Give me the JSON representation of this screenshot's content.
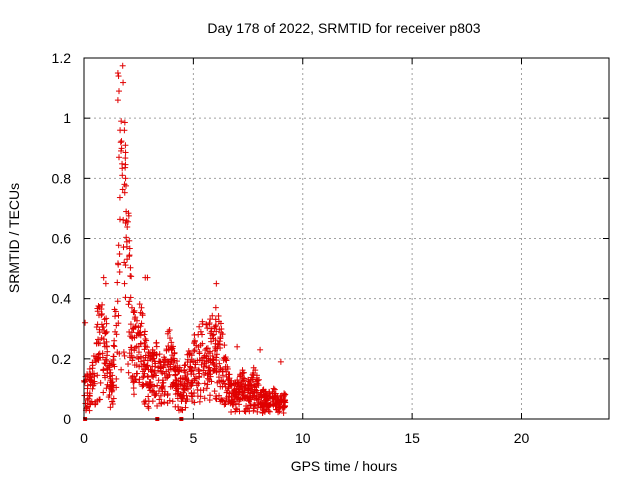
{
  "chart_data": {
    "type": "scatter",
    "title": "Day 178 of 2022, SRMTID for receiver p803",
    "xlabel": "GPS time / hours",
    "ylabel": "SRMTID / TECUs",
    "xlim": [
      0,
      24
    ],
    "ylim": [
      0,
      1.2
    ],
    "xticks": [
      0,
      5,
      10,
      15,
      20
    ],
    "xtick_labels": [
      "0",
      "5",
      "10",
      "15",
      "20"
    ],
    "yticks": [
      0,
      0.2,
      0.4,
      0.6,
      0.8,
      1.0,
      1.2
    ],
    "ytick_labels": [
      "0",
      "0.2",
      "0.4",
      "0.6",
      "0.8",
      "1",
      "1.2"
    ],
    "grid": true,
    "marker": "+",
    "color": "#e00000",
    "series": [
      {
        "name": "SRMTID",
        "envelope_note": "approximate data envelope used to generate the point cloud",
        "envelope": [
          [
            0.0,
            0.14
          ],
          [
            0.2,
            0.12
          ],
          [
            0.4,
            0.16
          ],
          [
            0.6,
            0.28
          ],
          [
            0.8,
            0.33
          ],
          [
            1.0,
            0.3
          ],
          [
            1.1,
            0.14
          ],
          [
            1.3,
            0.17
          ],
          [
            1.5,
            0.4
          ],
          [
            1.6,
            0.55
          ],
          [
            1.7,
            0.8
          ],
          [
            1.8,
            0.95
          ],
          [
            1.9,
            0.72
          ],
          [
            2.0,
            0.6
          ],
          [
            2.1,
            0.45
          ],
          [
            2.2,
            0.3
          ],
          [
            2.4,
            0.26
          ],
          [
            2.6,
            0.33
          ],
          [
            2.8,
            0.22
          ],
          [
            3.0,
            0.17
          ],
          [
            3.3,
            0.2
          ],
          [
            3.6,
            0.15
          ],
          [
            3.9,
            0.24
          ],
          [
            4.2,
            0.16
          ],
          [
            4.5,
            0.12
          ],
          [
            4.8,
            0.19
          ],
          [
            5.1,
            0.22
          ],
          [
            5.4,
            0.26
          ],
          [
            5.7,
            0.25
          ],
          [
            6.0,
            0.3
          ],
          [
            6.2,
            0.27
          ],
          [
            6.4,
            0.2
          ],
          [
            6.6,
            0.12
          ],
          [
            6.9,
            0.09
          ],
          [
            7.2,
            0.13
          ],
          [
            7.5,
            0.1
          ],
          [
            7.8,
            0.14
          ],
          [
            8.1,
            0.08
          ],
          [
            8.4,
            0.07
          ],
          [
            8.7,
            0.08
          ],
          [
            9.0,
            0.06
          ],
          [
            9.2,
            0.07
          ]
        ],
        "peaks": [
          [
            1.55,
            1.15
          ],
          [
            1.58,
            1.14
          ],
          [
            1.6,
            1.09
          ],
          [
            1.55,
            1.06
          ],
          [
            1.65,
            0.96
          ],
          [
            1.7,
            0.99
          ],
          [
            1.68,
            0.92
          ],
          [
            1.6,
            0.87
          ],
          [
            1.75,
            0.81
          ],
          [
            1.9,
            0.8
          ],
          [
            1.85,
            0.78
          ],
          [
            0.9,
            0.47
          ],
          [
            1.0,
            0.45
          ],
          [
            2.8,
            0.47
          ],
          [
            2.9,
            0.47
          ],
          [
            6.05,
            0.45
          ],
          [
            0.05,
            0.32
          ],
          [
            8.05,
            0.23
          ],
          [
            7.0,
            0.24
          ],
          [
            9.0,
            0.19
          ]
        ],
        "zero_markers": [
          0.05,
          3.35,
          4.45
        ]
      }
    ]
  }
}
